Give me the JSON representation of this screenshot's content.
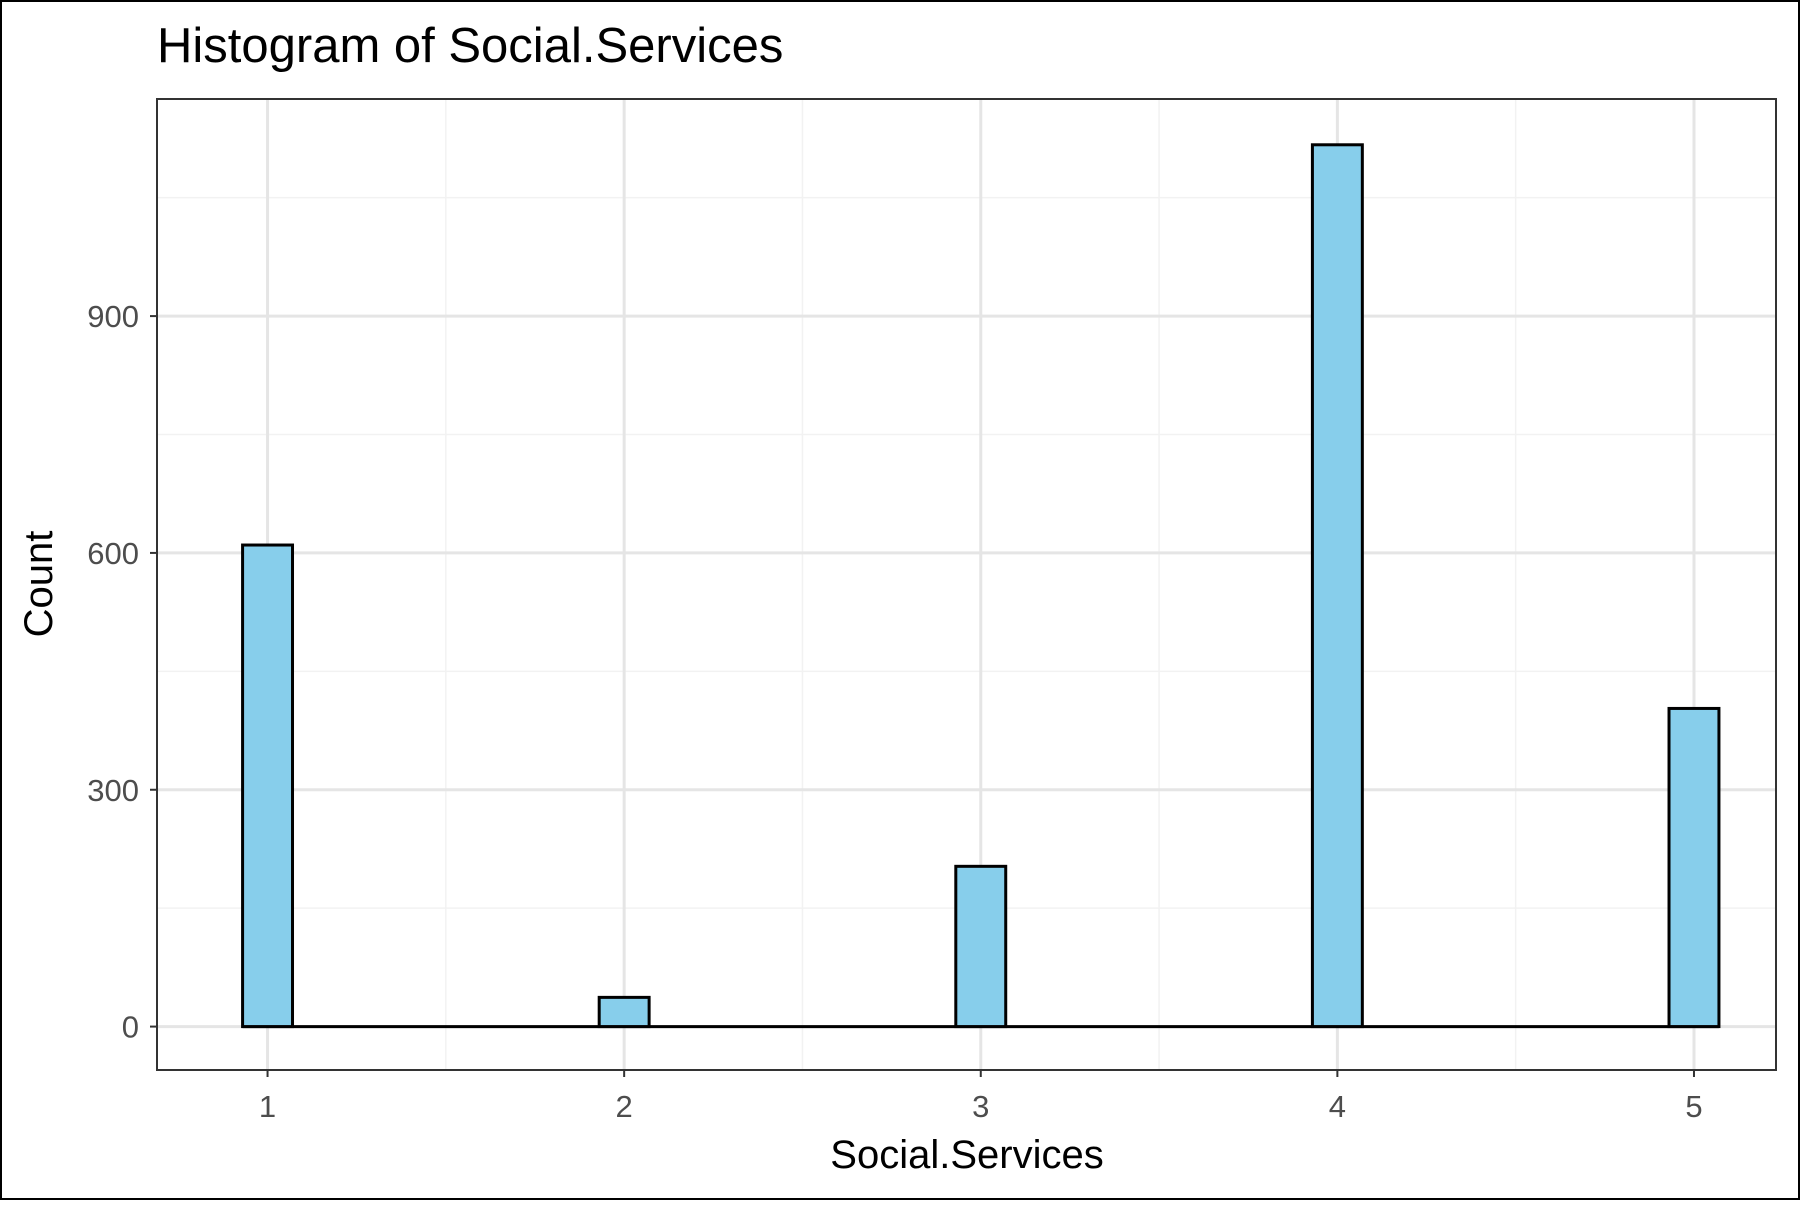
{
  "chart_data": {
    "type": "bar",
    "title": "Histogram of Social.Services",
    "xlabel": "Social.Services",
    "ylabel": "Count",
    "x_ticks": [
      "1",
      "2",
      "3",
      "4",
      "5"
    ],
    "y_ticks": [
      "0",
      "300",
      "600",
      "900"
    ],
    "xlim": [
      0.69,
      5.23
    ],
    "ylim": [
      -55,
      1175
    ],
    "grid": true,
    "bin_width": 0.14,
    "bins": [
      {
        "x": 1,
        "value": 610
      },
      {
        "x": 2,
        "value": 37
      },
      {
        "x": 3,
        "value": 203
      },
      {
        "x": 4,
        "value": 1117
      },
      {
        "x": 5,
        "value": 403
      }
    ],
    "colors": {
      "fill": "#87ceeb",
      "stroke": "#000000",
      "grid_major": "#e5e5e5",
      "grid_minor": "#f2f2f2",
      "panel_border": "#333333",
      "tick_text": "#4d4d4d"
    }
  }
}
